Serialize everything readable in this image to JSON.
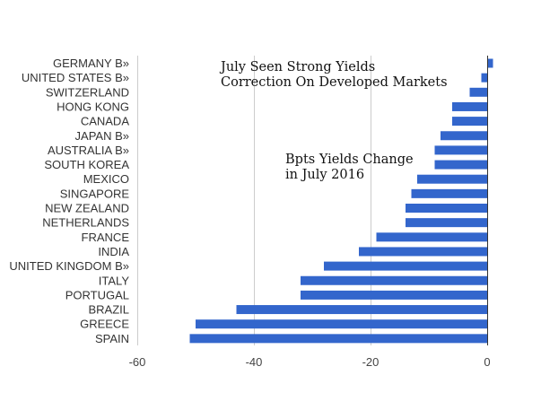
{
  "chart_data": {
    "type": "bar",
    "orientation": "horizontal",
    "categories": [
      "GERMANY B»",
      "UNITED STATES B»",
      "SWITZERLAND",
      "HONG KONG",
      "CANADA",
      "JAPAN B»",
      "AUSTRALIA B»",
      "SOUTH KOREA",
      "MEXICO",
      "SINGAPORE",
      "NEW ZEALAND",
      "NETHERLANDS",
      "FRANCE",
      "INDIA",
      "UNITED KINGDOM B»",
      "ITALY",
      "PORTUGAL",
      "BRAZIL",
      "GREECE",
      "SPAIN"
    ],
    "values": [
      1,
      -1,
      -3,
      -6,
      -6,
      -8,
      -9,
      -9,
      -12,
      -13,
      -14,
      -14,
      -19,
      -22,
      -28,
      -32,
      -32,
      -43,
      -50,
      -51
    ],
    "xlim": [
      -60,
      0
    ],
    "xticks": [
      "-60",
      "-40",
      "-20",
      "0"
    ],
    "xtick_values": [
      -60,
      -40,
      -20,
      0
    ],
    "grid": true,
    "bar_color": "#3366cc",
    "grid_color": "#cccccc",
    "annotations": [
      {
        "lines": [
          "July Seen Strong Yields",
          "Correction On Developed Markets"
        ]
      },
      {
        "lines": [
          "Bpts Yields Change",
          "in July 2016"
        ]
      }
    ]
  }
}
